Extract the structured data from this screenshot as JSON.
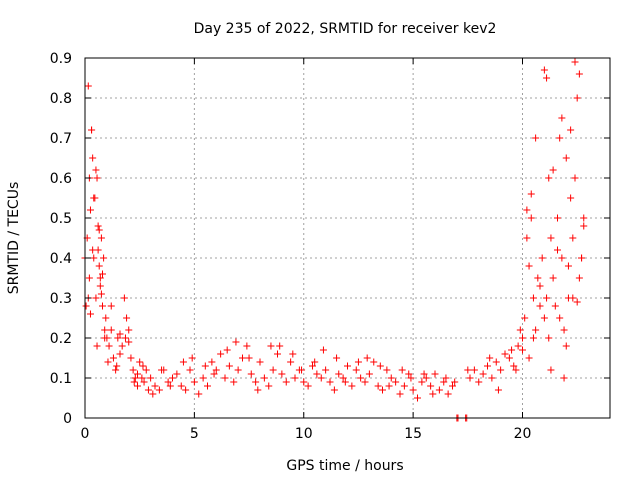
{
  "chart_data": {
    "type": "scatter",
    "title": "Day 235 of 2022, SRMTID for receiver kev2",
    "xlabel": "GPS time / hours",
    "ylabel": "SRMTID / TECUs",
    "xlim": [
      0,
      24
    ],
    "ylim": [
      0,
      0.9
    ],
    "xticks": [
      0,
      5,
      10,
      15,
      20
    ],
    "xtick_labels": [
      "0",
      "5",
      "10",
      "15",
      "20"
    ],
    "yticks": [
      0,
      0.1,
      0.2,
      0.3,
      0.4,
      0.5,
      0.6,
      0.7,
      0.8,
      0.9
    ],
    "ytick_labels": [
      "0",
      "0.1",
      "0.2",
      "0.3",
      "0.4",
      "0.5",
      "0.6",
      "0.7",
      "0.8",
      "0.9"
    ],
    "grid": true,
    "marker": "+",
    "color": "#ff0000",
    "series": [
      {
        "name": "SRMTID",
        "x": [
          0.0,
          0.05,
          0.1,
          0.15,
          0.2,
          0.25,
          0.3,
          0.35,
          0.4,
          0.45,
          0.5,
          0.55,
          0.6,
          0.65,
          0.7,
          0.75,
          0.8,
          0.85,
          0.9,
          0.95,
          1.0,
          1.1,
          1.2,
          1.3,
          1.4,
          1.5,
          1.6,
          1.7,
          1.8,
          1.9,
          2.0,
          2.1,
          2.2,
          2.3,
          2.4,
          2.5,
          2.6,
          2.7,
          2.8,
          2.9,
          3.0,
          3.2,
          3.4,
          3.6,
          3.8,
          4.0,
          4.2,
          4.4,
          4.6,
          4.8,
          5.0,
          5.2,
          5.4,
          5.6,
          5.8,
          6.0,
          6.2,
          6.4,
          6.6,
          6.8,
          7.0,
          7.2,
          7.4,
          7.6,
          7.8,
          8.0,
          8.2,
          8.4,
          8.6,
          8.8,
          9.0,
          9.2,
          9.4,
          9.6,
          9.8,
          10.0,
          10.2,
          10.4,
          10.6,
          10.8,
          11.0,
          11.2,
          11.4,
          11.6,
          11.8,
          12.0,
          12.2,
          12.4,
          12.6,
          12.8,
          13.0,
          13.2,
          13.4,
          13.6,
          13.8,
          14.0,
          14.2,
          14.4,
          14.6,
          14.8,
          15.0,
          15.2,
          15.4,
          15.6,
          15.8,
          16.0,
          16.2,
          16.4,
          16.6,
          16.8,
          17.0,
          17.05,
          17.4,
          17.45,
          17.6,
          17.8,
          18.0,
          18.2,
          18.4,
          18.6,
          18.8,
          19.0,
          19.2,
          19.4,
          19.6,
          19.8,
          20.0,
          20.1,
          20.2,
          20.3,
          20.4,
          20.5,
          20.6,
          20.7,
          20.8,
          20.9,
          21.0,
          21.1,
          21.2,
          21.3,
          21.4,
          21.5,
          21.6,
          21.7,
          21.8,
          21.9,
          22.0,
          22.1,
          22.2,
          22.3,
          22.4,
          22.5,
          22.6,
          22.7,
          22.8,
          0.15,
          0.2,
          0.3,
          0.4,
          0.5,
          0.6,
          0.7,
          0.8,
          1.2,
          1.6,
          2.0,
          2.4,
          3.5,
          4.5,
          5.5,
          6.5,
          7.5,
          8.5,
          9.5,
          10.5,
          11.5,
          12.5,
          13.5,
          14.5,
          15.5,
          16.5,
          17.5,
          18.5,
          19.5,
          20.2,
          20.6,
          21.0,
          21.4,
          21.8,
          22.2,
          22.6,
          20.3,
          20.8,
          21.2,
          21.6,
          22.0,
          22.4,
          22.7,
          20.5,
          21.1,
          21.9,
          22.3,
          22.8,
          19.9,
          20.0,
          20.4,
          21.3,
          21.7,
          22.1,
          22.5,
          0.25,
          0.35,
          0.55,
          0.65,
          0.75,
          0.9,
          1.05,
          1.45,
          1.85,
          2.25,
          2.65,
          3.1,
          3.9,
          4.9,
          5.9,
          6.9,
          7.9,
          8.9,
          9.9,
          10.9,
          11.9,
          12.9,
          13.9,
          14.9,
          15.9,
          16.9,
          18.9,
          19.7
        ],
        "y": [
          0.4,
          0.28,
          0.45,
          0.3,
          0.35,
          0.52,
          0.72,
          0.65,
          0.4,
          0.55,
          0.3,
          0.6,
          0.42,
          0.38,
          0.35,
          0.45,
          0.28,
          0.4,
          0.22,
          0.25,
          0.2,
          0.18,
          0.22,
          0.15,
          0.12,
          0.2,
          0.16,
          0.18,
          0.3,
          0.25,
          0.22,
          0.15,
          0.12,
          0.1,
          0.08,
          0.14,
          0.1,
          0.09,
          0.12,
          0.07,
          0.1,
          0.08,
          0.07,
          0.12,
          0.09,
          0.1,
          0.11,
          0.08,
          0.07,
          0.12,
          0.09,
          0.06,
          0.1,
          0.08,
          0.14,
          0.12,
          0.16,
          0.1,
          0.13,
          0.09,
          0.12,
          0.15,
          0.18,
          0.11,
          0.09,
          0.14,
          0.1,
          0.08,
          0.12,
          0.16,
          0.11,
          0.09,
          0.14,
          0.1,
          0.12,
          0.09,
          0.08,
          0.13,
          0.11,
          0.1,
          0.12,
          0.09,
          0.07,
          0.11,
          0.1,
          0.13,
          0.08,
          0.12,
          0.1,
          0.09,
          0.11,
          0.14,
          0.08,
          0.07,
          0.12,
          0.1,
          0.09,
          0.06,
          0.08,
          0.11,
          0.07,
          0.05,
          0.09,
          0.1,
          0.08,
          0.11,
          0.07,
          0.09,
          0.06,
          0.08,
          0.0,
          0.0,
          0.0,
          0.0,
          0.1,
          0.12,
          0.09,
          0.11,
          0.13,
          0.1,
          0.14,
          0.12,
          0.16,
          0.15,
          0.13,
          0.18,
          0.2,
          0.25,
          0.45,
          0.38,
          0.5,
          0.3,
          0.22,
          0.35,
          0.28,
          0.4,
          0.25,
          0.3,
          0.6,
          0.45,
          0.35,
          0.28,
          0.5,
          0.7,
          0.4,
          0.22,
          0.18,
          0.3,
          0.55,
          0.45,
          0.6,
          0.8,
          0.35,
          0.4,
          0.5,
          0.83,
          0.6,
          0.72,
          0.55,
          0.62,
          0.48,
          0.33,
          0.36,
          0.28,
          0.21,
          0.19,
          0.11,
          0.12,
          0.14,
          0.13,
          0.17,
          0.15,
          0.18,
          0.16,
          0.14,
          0.15,
          0.14,
          0.13,
          0.12,
          0.11,
          0.1,
          0.12,
          0.15,
          0.17,
          0.52,
          0.7,
          0.87,
          0.62,
          0.75,
          0.72,
          0.86,
          0.15,
          0.33,
          0.2,
          0.42,
          0.65,
          0.89,
          0.4,
          0.2,
          0.85,
          0.1,
          0.3,
          0.48,
          0.22,
          0.17,
          0.56,
          0.12,
          0.25,
          0.38,
          0.29,
          0.26,
          0.42,
          0.18,
          0.47,
          0.31,
          0.2,
          0.14,
          0.13,
          0.2,
          0.09,
          0.13,
          0.06,
          0.08,
          0.15,
          0.11,
          0.19,
          0.07,
          0.18,
          0.12,
          0.17,
          0.09,
          0.15,
          0.08,
          0.1,
          0.06,
          0.09,
          0.07,
          0.12
        ]
      }
    ]
  }
}
